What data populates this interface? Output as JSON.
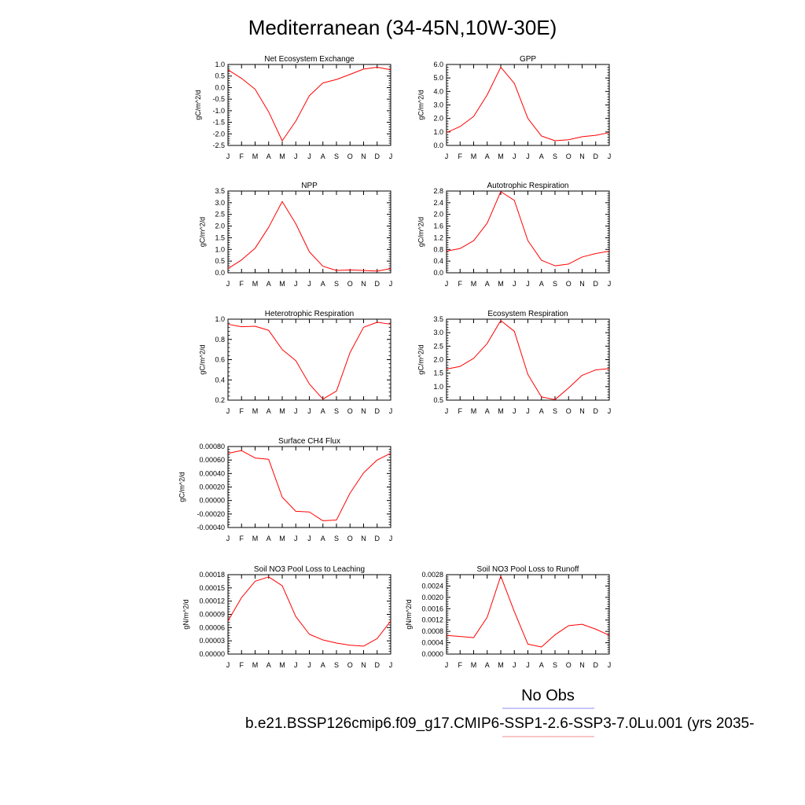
{
  "figure": {
    "title": "Mediterranean (34-45N,10W-30E)",
    "legend_label": "No Obs",
    "caption": "b.e21.BSSP126cmip6.f09_g17.CMIP6-SSP1-2.6-SSP3-7.0Lu.001 (yrs 2035-",
    "obs_line_color": "#8c8cf0",
    "model_line_color": "#f08c8c",
    "series_color": "#ff0000"
  },
  "chart_data": [
    {
      "type": "line",
      "title": "Net Ecosystem Exchange",
      "ylabel": "gC/m^2/d",
      "categories": [
        "J",
        "F",
        "M",
        "A",
        "M",
        "J",
        "J",
        "A",
        "S",
        "O",
        "N",
        "D",
        "J"
      ],
      "values": [
        0.77,
        0.4,
        -0.07,
        -1.05,
        -2.3,
        -1.45,
        -0.35,
        0.2,
        0.35,
        0.57,
        0.8,
        0.88,
        0.77
      ],
      "ylim": [
        -2.5,
        1.0
      ],
      "yticks": [
        1.0,
        0.5,
        0.0,
        -0.5,
        -1.0,
        -1.5,
        -2.0,
        -2.5
      ],
      "ytick_labels": [
        "1.0",
        "0.5",
        "0.0",
        "-0.5",
        "-1.0",
        "-1.5",
        "-2.0",
        "-2.5"
      ]
    },
    {
      "type": "line",
      "title": "GPP",
      "ylabel": "gC/m^2/d",
      "categories": [
        "J",
        "F",
        "M",
        "A",
        "M",
        "J",
        "J",
        "A",
        "S",
        "O",
        "N",
        "D",
        "J"
      ],
      "values": [
        0.95,
        1.4,
        2.15,
        3.75,
        5.8,
        4.6,
        2.0,
        0.7,
        0.35,
        0.42,
        0.65,
        0.75,
        0.95
      ],
      "ylim": [
        0.0,
        6.0
      ],
      "yticks": [
        6.0,
        5.0,
        4.0,
        3.0,
        2.0,
        1.0,
        0.0
      ],
      "ytick_labels": [
        "6.0",
        "5.0",
        "4.0",
        "3.0",
        "2.0",
        "1.0",
        "0.0"
      ]
    },
    {
      "type": "line",
      "title": "NPP",
      "ylabel": "gC/m^2/d",
      "categories": [
        "J",
        "F",
        "M",
        "A",
        "M",
        "J",
        "J",
        "A",
        "S",
        "O",
        "N",
        "D",
        "J"
      ],
      "values": [
        0.18,
        0.55,
        1.05,
        1.95,
        3.05,
        2.1,
        0.9,
        0.28,
        0.1,
        0.12,
        0.1,
        0.07,
        0.18
      ],
      "ylim": [
        0.0,
        3.5
      ],
      "yticks": [
        3.5,
        3.0,
        2.5,
        2.0,
        1.5,
        1.0,
        0.5,
        0.0
      ],
      "ytick_labels": [
        "3.5",
        "3.0",
        "2.5",
        "2.0",
        "1.5",
        "1.0",
        "0.5",
        "0.0"
      ]
    },
    {
      "type": "line",
      "title": "Autotrophic Respiration",
      "ylabel": "gC/m^2/d",
      "categories": [
        "J",
        "F",
        "M",
        "A",
        "M",
        "J",
        "J",
        "A",
        "S",
        "O",
        "N",
        "D",
        "J"
      ],
      "values": [
        0.74,
        0.83,
        1.1,
        1.7,
        2.78,
        2.48,
        1.1,
        0.43,
        0.24,
        0.3,
        0.54,
        0.66,
        0.74
      ],
      "ylim": [
        0.0,
        2.8
      ],
      "yticks": [
        2.8,
        2.4,
        2.0,
        1.6,
        1.2,
        0.8,
        0.4,
        0.0
      ],
      "ytick_labels": [
        "2.8",
        "2.4",
        "2.0",
        "1.6",
        "1.2",
        "0.8",
        "0.4",
        "0.0"
      ]
    },
    {
      "type": "line",
      "title": "Heterotrophic Respiration",
      "ylabel": "gC/m^2/d",
      "categories": [
        "J",
        "F",
        "M",
        "A",
        "M",
        "J",
        "J",
        "A",
        "S",
        "O",
        "N",
        "D",
        "J"
      ],
      "values": [
        0.95,
        0.925,
        0.93,
        0.89,
        0.7,
        0.59,
        0.36,
        0.21,
        0.29,
        0.67,
        0.92,
        0.97,
        0.95
      ],
      "ylim": [
        0.2,
        1.0
      ],
      "yticks": [
        1.0,
        0.8,
        0.6,
        0.4,
        0.2
      ],
      "ytick_labels": [
        "1.0",
        "0.8",
        "0.6",
        "0.4",
        "0.2"
      ]
    },
    {
      "type": "line",
      "title": "Ecosystem Respiration",
      "ylabel": "gC/m^2/d",
      "categories": [
        "J",
        "F",
        "M",
        "A",
        "M",
        "J",
        "J",
        "A",
        "S",
        "O",
        "N",
        "D",
        "J"
      ],
      "values": [
        1.65,
        1.75,
        2.05,
        2.6,
        3.45,
        3.05,
        1.45,
        0.62,
        0.52,
        0.95,
        1.42,
        1.62,
        1.67
      ],
      "ylim": [
        0.5,
        3.5
      ],
      "yticks": [
        3.5,
        3.0,
        2.5,
        2.0,
        1.5,
        1.0,
        0.5
      ],
      "ytick_labels": [
        "3.5",
        "3.0",
        "2.5",
        "2.0",
        "1.5",
        "1.0",
        "0.5"
      ]
    },
    {
      "type": "line",
      "title": "Surface CH4 Flux",
      "ylabel": "gC/m^2/d",
      "categories": [
        "J",
        "F",
        "M",
        "A",
        "M",
        "J",
        "J",
        "A",
        "S",
        "O",
        "N",
        "D",
        "J"
      ],
      "values": [
        0.0007,
        0.00074,
        0.00063,
        0.00061,
        5e-05,
        -0.00016,
        -0.00017,
        -0.0003,
        -0.00029,
        0.00011,
        0.00041,
        0.0006,
        0.0007
      ],
      "ylim": [
        -0.0004,
        0.0008
      ],
      "yticks": [
        0.0008,
        0.0006,
        0.0004,
        0.0002,
        0.0,
        -0.0002,
        -0.0004
      ],
      "ytick_labels": [
        "0.00080",
        "0.00060",
        "0.00040",
        "0.00020",
        "0.00000",
        "-0.00020",
        "-0.00040"
      ]
    },
    {
      "type": "line",
      "title": "Soil NO3 Pool Loss to Leaching",
      "ylabel": "gN/m^2/d",
      "categories": [
        "J",
        "F",
        "M",
        "A",
        "M",
        "J",
        "J",
        "A",
        "S",
        "O",
        "N",
        "D",
        "J"
      ],
      "values": [
        7.5e-05,
        0.000128,
        0.000165,
        0.000175,
        0.000155,
        8.5e-05,
        4.5e-05,
        3.2e-05,
        2.5e-05,
        2e-05,
        1.8e-05,
        3.5e-05,
        7.5e-05
      ],
      "ylim": [
        0.0,
        0.00018
      ],
      "yticks": [
        0.00018,
        0.00015,
        0.00012,
        9e-05,
        6e-05,
        3e-05,
        0.0
      ],
      "ytick_labels": [
        "0.00018",
        "0.00015",
        "0.00012",
        "0.00009",
        "0.00006",
        "0.00003",
        "0.00000"
      ]
    },
    {
      "type": "line",
      "title": "Soil NO3 Pool Loss to Runoff",
      "ylabel": "gN/m^2/d",
      "categories": [
        "J",
        "F",
        "M",
        "A",
        "M",
        "J",
        "J",
        "A",
        "S",
        "O",
        "N",
        "D",
        "J"
      ],
      "values": [
        0.00066,
        0.00062,
        0.00058,
        0.0013,
        0.00275,
        0.0015,
        0.00035,
        0.00025,
        0.00068,
        0.001,
        0.00105,
        0.00088,
        0.00066
      ],
      "ylim": [
        0.0,
        0.0028
      ],
      "yticks": [
        0.0028,
        0.0024,
        0.002,
        0.0016,
        0.0012,
        0.0008,
        0.0004,
        0.0
      ],
      "ytick_labels": [
        "0.0028",
        "0.0024",
        "0.0020",
        "0.0016",
        "0.0012",
        "0.0008",
        "0.0004",
        "0.0000"
      ]
    }
  ]
}
